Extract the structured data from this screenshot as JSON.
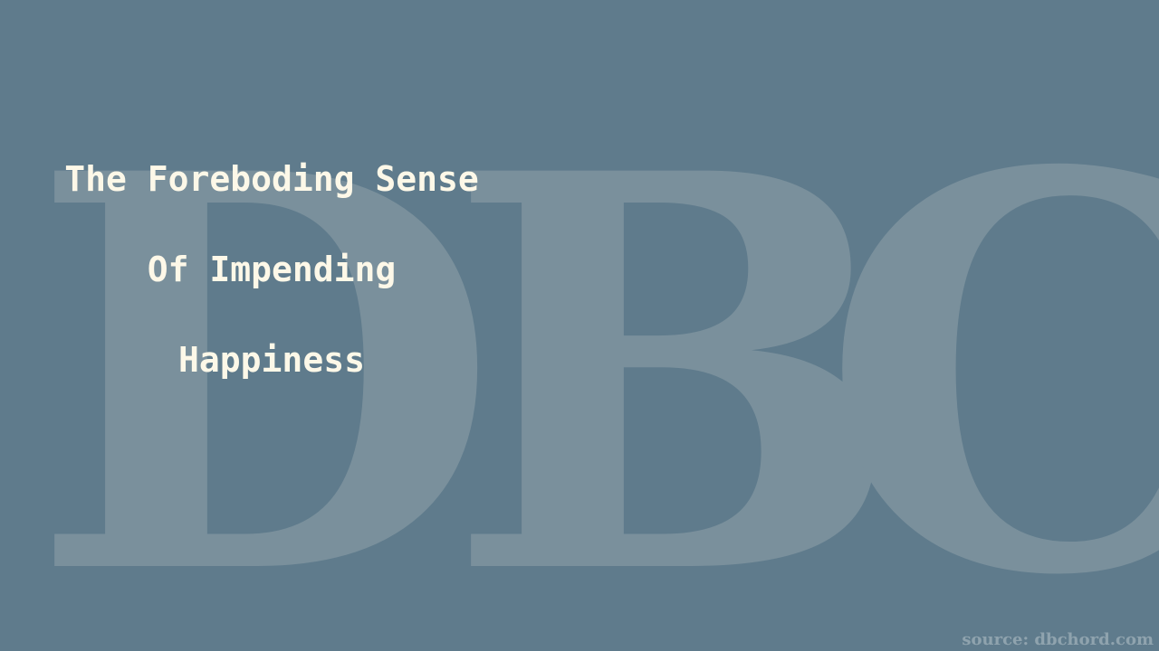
{
  "watermark": {
    "letters": [
      "D",
      "B",
      "C"
    ]
  },
  "title": {
    "lines": [
      "The Foreboding Sense",
      "Of Impending",
      "Happiness"
    ]
  },
  "source": {
    "text": "source: dbchord.com"
  },
  "colors": {
    "background": "#5f7b8c",
    "watermark": "#7a909c",
    "title_text": "#fdf8e8",
    "source_text": "#8fa3ae"
  }
}
